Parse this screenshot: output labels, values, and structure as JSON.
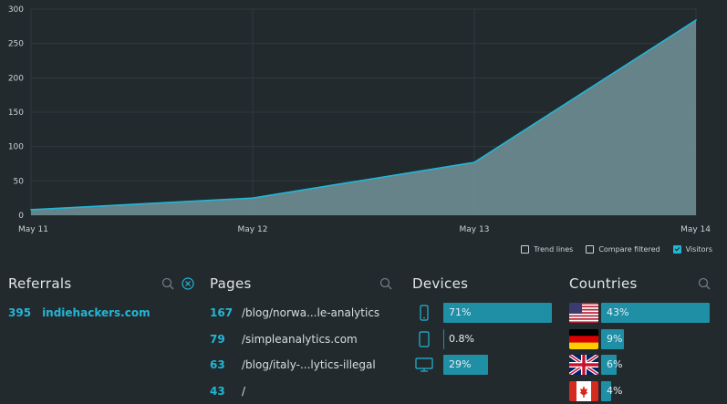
{
  "colors": {
    "accent": "#22b6d6",
    "bar": "#1f8fa6",
    "area_fill": "#6c8b91",
    "background": "#222a2d"
  },
  "chart_data": {
    "type": "area",
    "x": [
      "May 11",
      "May 12",
      "May 13",
      "May 14"
    ],
    "series": [
      {
        "values": [
          8,
          25,
          77,
          284
        ]
      }
    ],
    "y_ticks": [
      0,
      50,
      100,
      150,
      200,
      250,
      300
    ],
    "ylim": [
      0,
      300
    ],
    "grid": true
  },
  "legend": {
    "trend_lines": {
      "label": "Trend lines",
      "checked": false
    },
    "compare_filtered": {
      "label": "Compare filtered",
      "checked": false
    },
    "visitors": {
      "label": "Visitors",
      "checked": true
    }
  },
  "referrals": {
    "title": "Referrals",
    "search_icon": "search-icon",
    "clear_icon": "close-circle-icon",
    "items": [
      {
        "count": "395",
        "label": "indiehackers.com"
      }
    ]
  },
  "pages": {
    "title": "Pages",
    "search_icon": "search-icon",
    "items": [
      {
        "count": "167",
        "path": "/blog/norwa...le-analytics"
      },
      {
        "count": "79",
        "path": "/simpleanalytics.com"
      },
      {
        "count": "63",
        "path": "/blog/italy-...lytics-illegal"
      },
      {
        "count": "43",
        "path": "/"
      }
    ]
  },
  "devices": {
    "title": "Devices",
    "items": [
      {
        "icon": "mobile-icon",
        "percent": "71%",
        "value": 0.71
      },
      {
        "icon": "tablet-icon",
        "percent": "0.8%",
        "value": 0.008
      },
      {
        "icon": "desktop-icon",
        "percent": "29%",
        "value": 0.29
      }
    ]
  },
  "countries": {
    "title": "Countries",
    "search_icon": "search-icon",
    "items": [
      {
        "flag": "us-flag-icon",
        "percent": "43%",
        "value": 0.43
      },
      {
        "flag": "de-flag-icon",
        "percent": "9%",
        "value": 0.09
      },
      {
        "flag": "gb-flag-icon",
        "percent": "6%",
        "value": 0.06
      },
      {
        "flag": "ca-flag-icon",
        "percent": "4%",
        "value": 0.04
      }
    ]
  }
}
